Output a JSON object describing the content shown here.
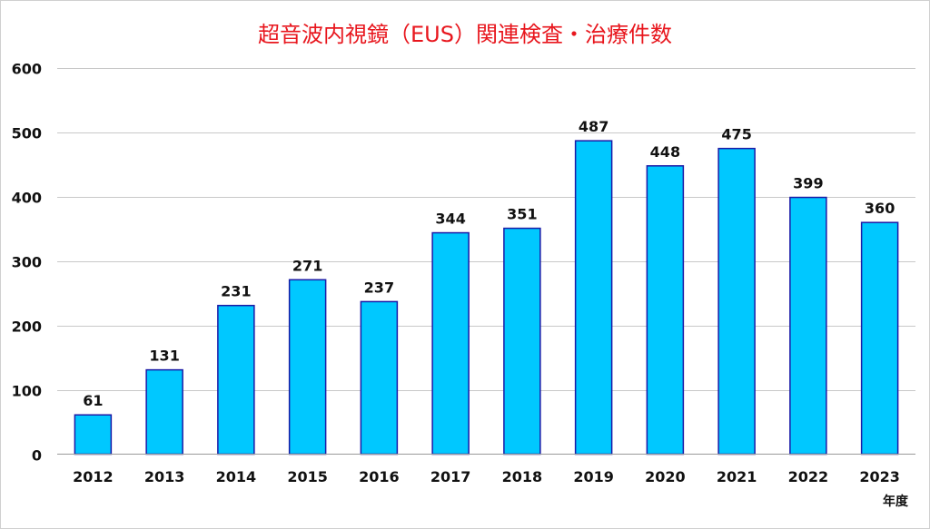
{
  "chart_data": {
    "type": "bar",
    "title": "超音波内視鏡（EUS）関連検査・治療件数",
    "xlabel": "年度",
    "ylabel": "",
    "categories": [
      "2012",
      "2013",
      "2014",
      "2015",
      "2016",
      "2017",
      "2018",
      "2019",
      "2020",
      "2021",
      "2022",
      "2023"
    ],
    "values": [
      61,
      131,
      231,
      271,
      237,
      344,
      351,
      487,
      448,
      475,
      399,
      360
    ],
    "ylim": [
      0,
      600
    ],
    "yticks": [
      0,
      100,
      200,
      300,
      400,
      500,
      600
    ],
    "grid": true,
    "legend": "none",
    "colors": {
      "bar_fill": "#00c8ff",
      "bar_stroke": "#1a1aa6",
      "title": "#e8161d"
    }
  }
}
